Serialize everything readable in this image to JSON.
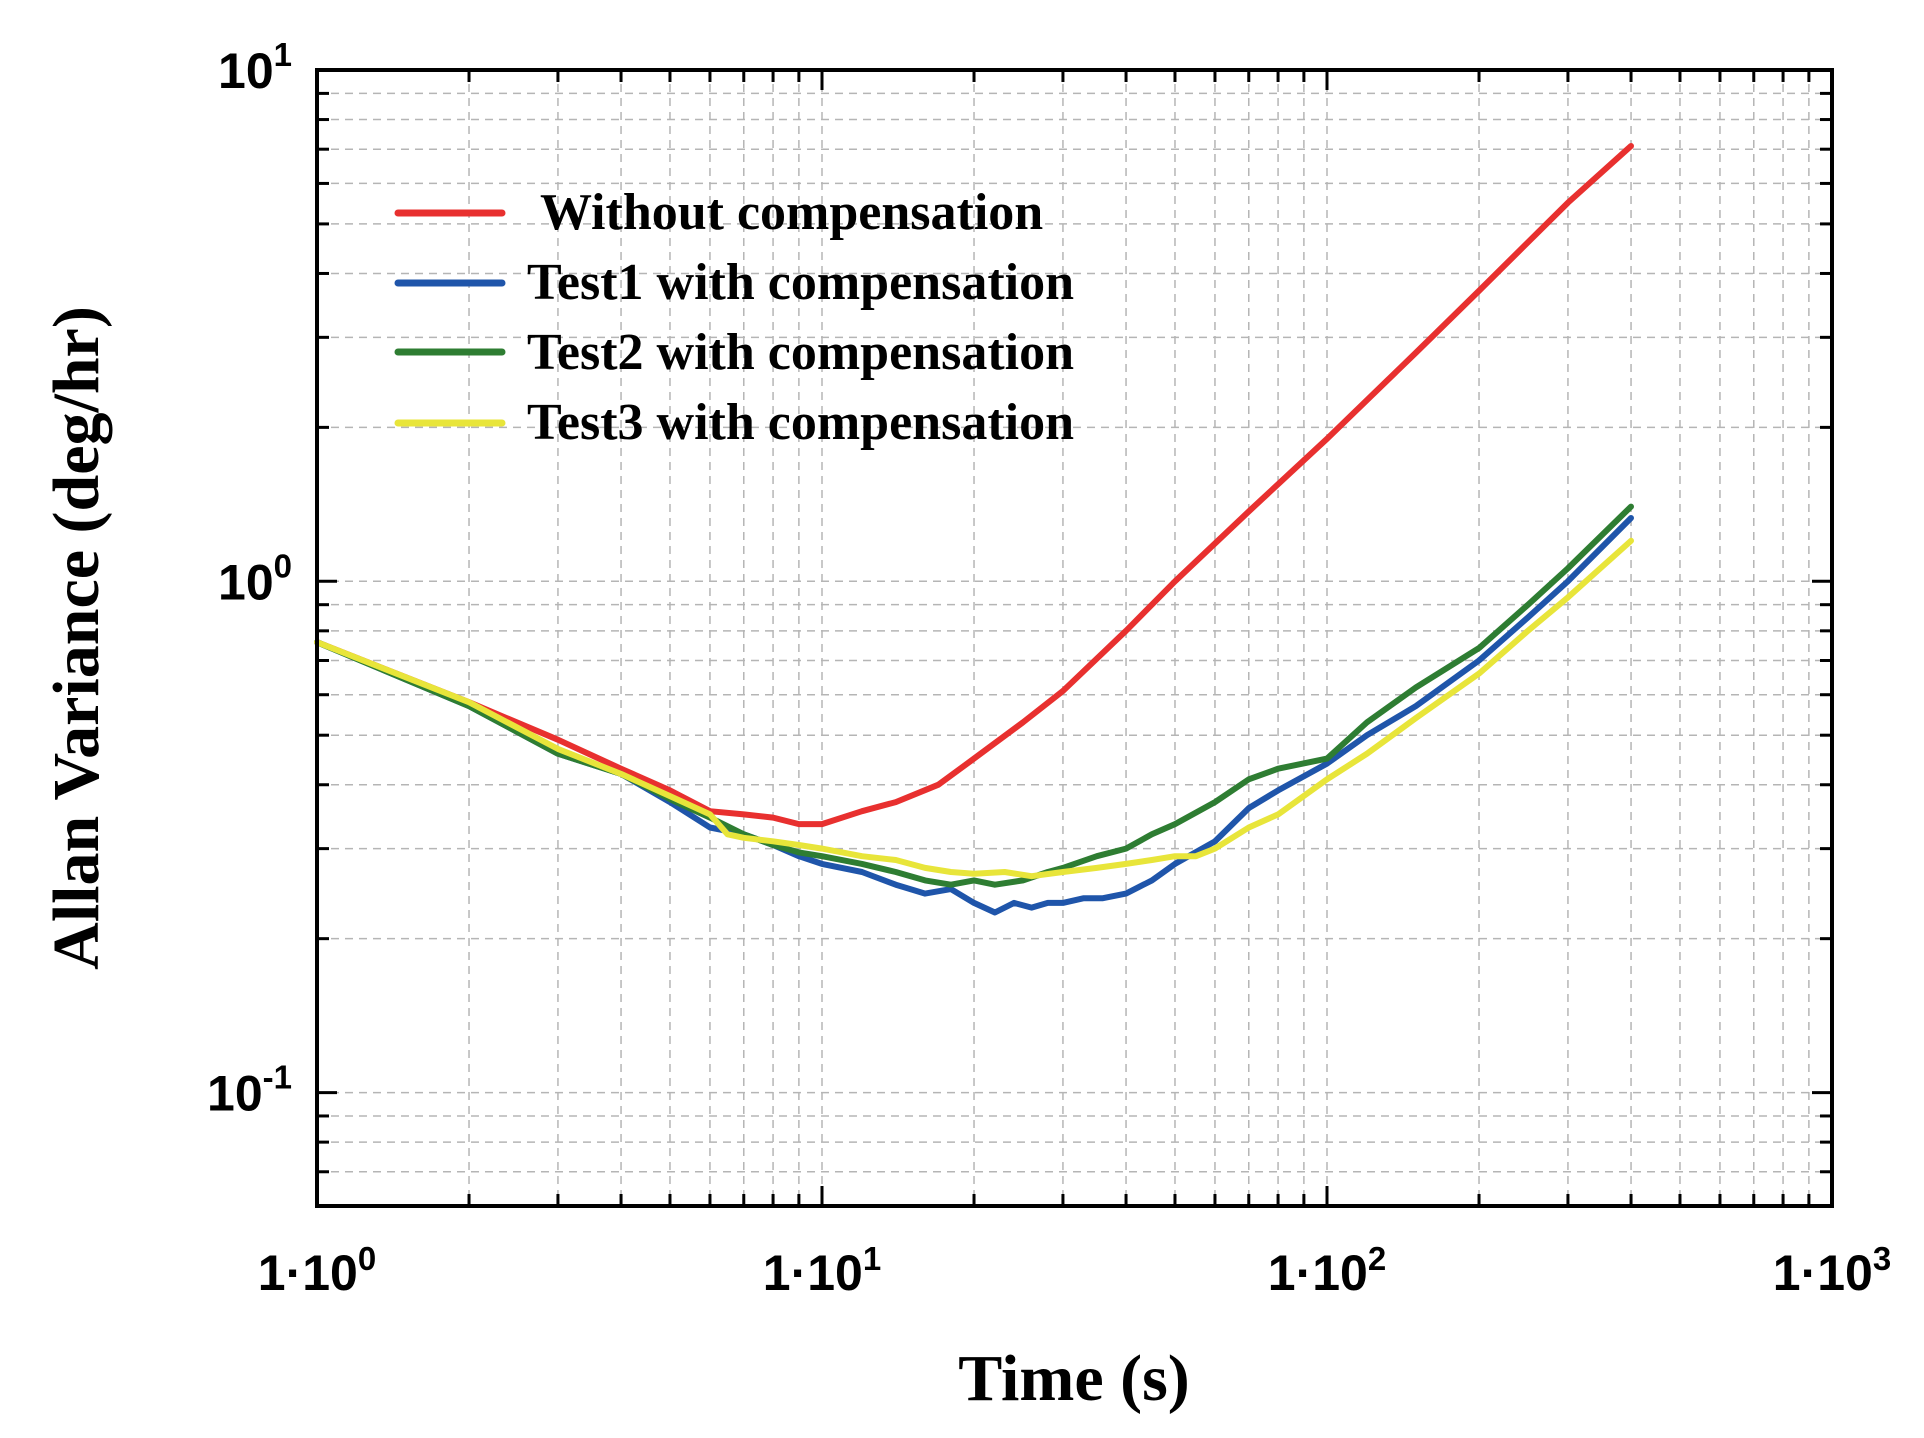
{
  "chart_data": {
    "type": "line",
    "title": "",
    "xlabel": "Time (s)",
    "ylabel": "Allan Variance (deg/hr)",
    "xscale": "log",
    "yscale": "log",
    "xlim": [
      1,
      1000
    ],
    "ylim": [
      0.06,
      10
    ],
    "grid": true,
    "legend_position": "top-left",
    "x_ticks": [
      {
        "value": 1,
        "base": "1·10",
        "exp": "0"
      },
      {
        "value": 10,
        "base": "1·10",
        "exp": "1"
      },
      {
        "value": 100,
        "base": "1·10",
        "exp": "2"
      },
      {
        "value": 1000,
        "base": "1·10",
        "exp": "3"
      }
    ],
    "y_ticks": [
      {
        "value": 0.1,
        "base": "10",
        "exp": "-1"
      },
      {
        "value": 1,
        "base": "10",
        "exp": "0"
      },
      {
        "value": 10,
        "base": "10",
        "exp": "1"
      }
    ],
    "series": [
      {
        "name": "Without compensation",
        "color": "#e8302f",
        "x": [
          1,
          2,
          3,
          4,
          5,
          6,
          7,
          8,
          9,
          10,
          12,
          14,
          17,
          20,
          25,
          30,
          40,
          50,
          70,
          100,
          150,
          200,
          300,
          400
        ],
        "y": [
          0.76,
          0.58,
          0.49,
          0.43,
          0.39,
          0.355,
          0.35,
          0.345,
          0.335,
          0.335,
          0.355,
          0.37,
          0.4,
          0.45,
          0.53,
          0.61,
          0.8,
          1.0,
          1.37,
          1.9,
          2.8,
          3.7,
          5.5,
          7.1
        ]
      },
      {
        "name": "Test1 with compensation",
        "color": "#1f55aa",
        "x": [
          1,
          2,
          3,
          4,
          5,
          6,
          7,
          8,
          9,
          10,
          12,
          14,
          16,
          18,
          20,
          22,
          24,
          26,
          28,
          30,
          33,
          36,
          40,
          45,
          50,
          60,
          70,
          80,
          100,
          120,
          150,
          200,
          250,
          300,
          400
        ],
        "y": [
          0.76,
          0.57,
          0.46,
          0.42,
          0.37,
          0.33,
          0.32,
          0.305,
          0.29,
          0.28,
          0.27,
          0.255,
          0.245,
          0.25,
          0.235,
          0.225,
          0.235,
          0.23,
          0.235,
          0.235,
          0.24,
          0.24,
          0.245,
          0.26,
          0.28,
          0.31,
          0.36,
          0.39,
          0.44,
          0.5,
          0.57,
          0.7,
          0.85,
          1.0,
          1.33
        ]
      },
      {
        "name": "Test2 with compensation",
        "color": "#2e7d32",
        "x": [
          1,
          2,
          3,
          4,
          5,
          6,
          7,
          8,
          9,
          10,
          12,
          14,
          16,
          18,
          20,
          22,
          25,
          28,
          30,
          35,
          40,
          45,
          50,
          60,
          70,
          80,
          100,
          120,
          150,
          200,
          250,
          300,
          400
        ],
        "y": [
          0.76,
          0.57,
          0.46,
          0.42,
          0.375,
          0.345,
          0.32,
          0.305,
          0.295,
          0.29,
          0.28,
          0.27,
          0.26,
          0.255,
          0.26,
          0.255,
          0.26,
          0.27,
          0.275,
          0.29,
          0.3,
          0.32,
          0.335,
          0.37,
          0.41,
          0.43,
          0.45,
          0.53,
          0.62,
          0.74,
          0.9,
          1.06,
          1.4
        ]
      },
      {
        "name": "Test3 with compensation",
        "color": "#e8e53a",
        "x": [
          1,
          2,
          3,
          4,
          5,
          6,
          6.5,
          7,
          8,
          9,
          10,
          12,
          14,
          16,
          18,
          20,
          23,
          26,
          30,
          35,
          40,
          45,
          50,
          55,
          60,
          70,
          80,
          100,
          120,
          150,
          200,
          250,
          300,
          400
        ],
        "y": [
          0.76,
          0.58,
          0.47,
          0.42,
          0.38,
          0.35,
          0.32,
          0.315,
          0.31,
          0.305,
          0.3,
          0.29,
          0.285,
          0.275,
          0.27,
          0.268,
          0.27,
          0.265,
          0.27,
          0.275,
          0.28,
          0.285,
          0.29,
          0.29,
          0.3,
          0.33,
          0.35,
          0.41,
          0.46,
          0.54,
          0.66,
          0.8,
          0.93,
          1.2
        ]
      }
    ]
  }
}
